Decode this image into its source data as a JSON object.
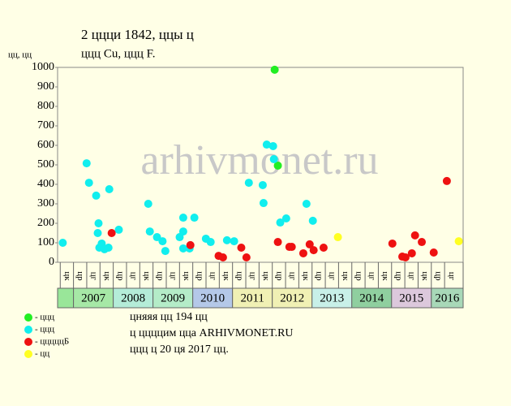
{
  "chart_data": {
    "type": "scatter",
    "title": "2 ццци 1842, ццы ц",
    "subtitle": "ццц Cu, ццц F.",
    "y_label": "цц, цц",
    "watermark": "arhivmonet.ru",
    "xlim": [
      2006.6,
      2016.8
    ],
    "ylim": [
      0,
      1000
    ],
    "yticks": [
      0,
      100,
      200,
      300,
      400,
      500,
      600,
      700,
      800,
      900,
      1000
    ],
    "columns": [
      "цк",
      "цр",
      "цг",
      "цк",
      "цр",
      "цг",
      "цк",
      "цр",
      "цг",
      "цк",
      "цр",
      "цг",
      "цк",
      "цр",
      "цг",
      "цк",
      "цр",
      "цг",
      "цк",
      "цр",
      "цг",
      "цк",
      "цр",
      "цг",
      "цк",
      "цр",
      "цг",
      "цк",
      "цр",
      "цг"
    ],
    "years": [
      null,
      "2007",
      "2008",
      "2009",
      "2010",
      "2011",
      "2012",
      "2013",
      "2014",
      "2015",
      "2016"
    ],
    "year_colors": [
      "#99e699",
      "#a6e8a6",
      "#b4ecd8",
      "#b4ecc8",
      "#b4c8e8",
      "#f0f0b4",
      "#f0f0b4",
      "#c8f0e8",
      "#8fcf9f",
      "#dcc8dc",
      "#a8d8b8"
    ],
    "series": [
      {
        "name": "- ццц",
        "color": "#22ee22",
        "x": [
          2012.06,
          2012.14
        ],
        "values": [
          988,
          496
        ]
      },
      {
        "name": "- ццц",
        "color": "#11eeee",
        "x": [
          2006.73,
          2007.33,
          2007.39,
          2007.57,
          2007.63,
          2007.61,
          2007.65,
          2007.71,
          2007.78,
          2007.88,
          2007.9,
          2008.14,
          2008.88,
          2008.92,
          2009.1,
          2009.24,
          2009.31,
          2009.67,
          2009.76,
          2009.76,
          2009.76,
          2009.92,
          2010.04,
          2010.33,
          2010.45,
          2010.86,
          2011.04,
          2011.41,
          2011.76,
          2011.78,
          2011.86,
          2012.02,
          2012.04,
          2012.2,
          2012.35,
          2012.86,
          2013.02
        ],
        "values": [
          100,
          508,
          408,
          342,
          200,
          150,
          75,
          96,
          67,
          75,
          375,
          167,
          300,
          158,
          129,
          108,
          58,
          129,
          229,
          158,
          71,
          71,
          229,
          121,
          104,
          113,
          108,
          408,
          396,
          304,
          604,
          596,
          529,
          204,
          225,
          300,
          213
        ]
      },
      {
        "name": "- цццццБ",
        "color": "#ee1111",
        "x": [
          2007.96,
          2009.94,
          2010.65,
          2010.76,
          2011.22,
          2011.35,
          2012.14,
          2012.43,
          2012.49,
          2012.78,
          2012.94,
          2013.04,
          2013.29,
          2015.02,
          2015.27,
          2015.35,
          2015.51,
          2015.59,
          2015.76,
          2016.06,
          2016.39
        ],
        "values": [
          150,
          88,
          33,
          25,
          75,
          25,
          104,
          79,
          79,
          46,
          92,
          62,
          75,
          96,
          29,
          25,
          46,
          138,
          104,
          50,
          417
        ]
      },
      {
        "name": "- цц",
        "color": "#ffff22",
        "x": [
          2013.65,
          2016.69
        ],
        "values": [
          129,
          108
        ]
      }
    ],
    "notes": [
      "цняяя цц 194 цц",
      "ц ццццим цца ARHIVMONET.RU",
      "ццц ц 20 ця 2017 цц."
    ]
  }
}
